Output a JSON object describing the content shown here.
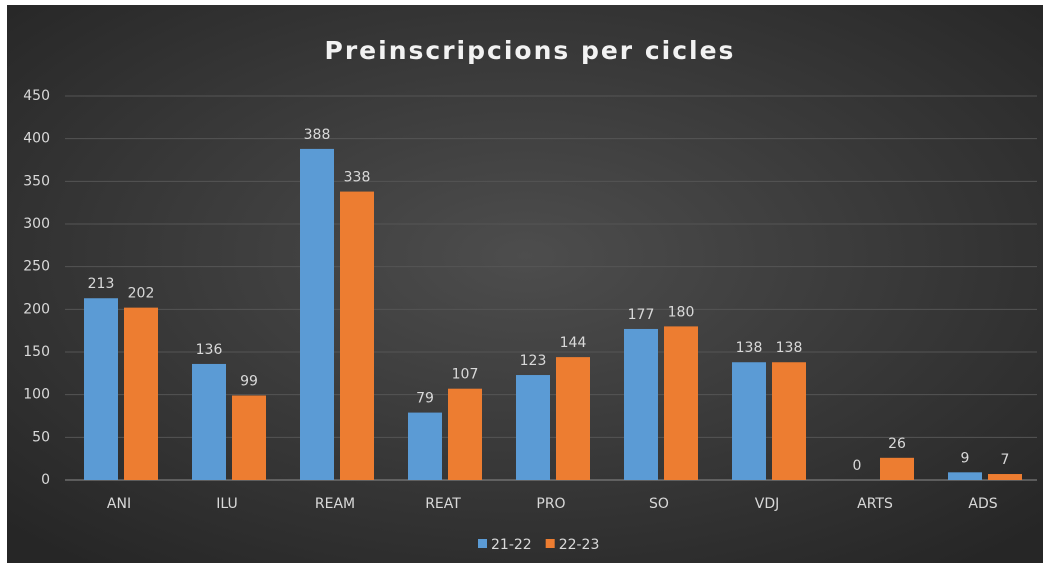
{
  "chart_data": {
    "type": "bar",
    "title": "Preinscripcions per cicles",
    "categories": [
      "ANI",
      "ILU",
      "REAM",
      "REAT",
      "PRO",
      "SO",
      "VDJ",
      "ARTS",
      "ADS"
    ],
    "series": [
      {
        "name": "21-22",
        "color": "#5b9bd5",
        "values": [
          213,
          136,
          388,
          79,
          123,
          177,
          138,
          0,
          9
        ]
      },
      {
        "name": "22-23",
        "color": "#ed7d31",
        "values": [
          202,
          99,
          338,
          107,
          144,
          180,
          138,
          26,
          7
        ]
      }
    ],
    "ylim": [
      0,
      450
    ],
    "yticks": [
      0,
      50,
      100,
      150,
      200,
      250,
      300,
      350,
      400,
      450
    ],
    "grid": true,
    "legend": "bottom"
  }
}
